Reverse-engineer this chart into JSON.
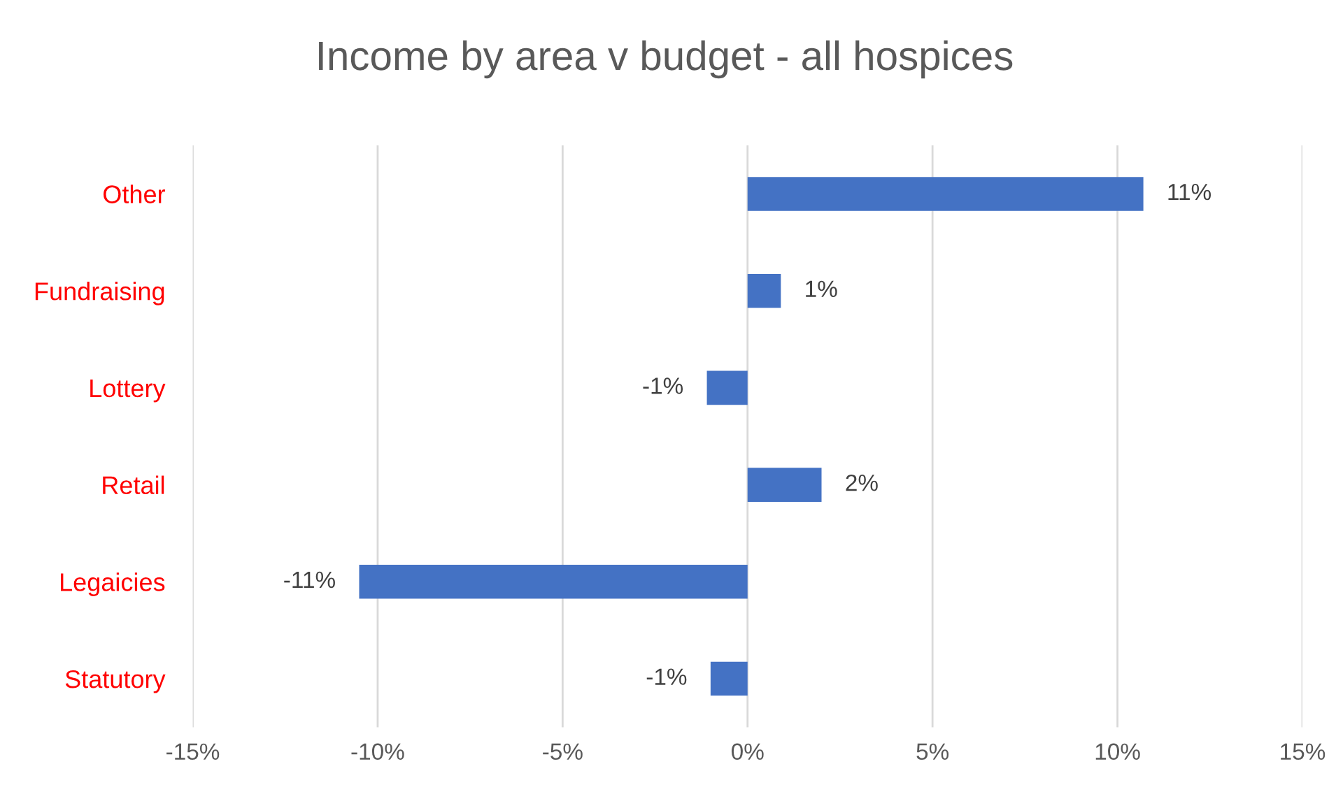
{
  "chart_data": {
    "type": "bar",
    "orientation": "horizontal",
    "title": "Income by area v budget - all hospices",
    "categories": [
      "Other",
      "Fundraising",
      "Lottery",
      "Retail",
      "Legaicies",
      "Statutory"
    ],
    "values": [
      10.7,
      0.9,
      -1.1,
      2.0,
      -10.5,
      -1.0
    ],
    "value_labels": [
      "11%",
      "1%",
      "-1%",
      "2%",
      "-11%",
      "-1%"
    ],
    "color": "#4472c4",
    "xlim": [
      -15,
      15
    ],
    "xticks": [
      {
        "value": -15,
        "label": "-15%"
      },
      {
        "value": -10,
        "label": "-10%"
      },
      {
        "value": -5,
        "label": "-5%"
      },
      {
        "value": 0,
        "label": "0%"
      },
      {
        "value": 5,
        "label": "5%"
      },
      {
        "value": 10,
        "label": "10%"
      },
      {
        "value": 15,
        "label": "15%"
      }
    ],
    "grid": "x"
  }
}
